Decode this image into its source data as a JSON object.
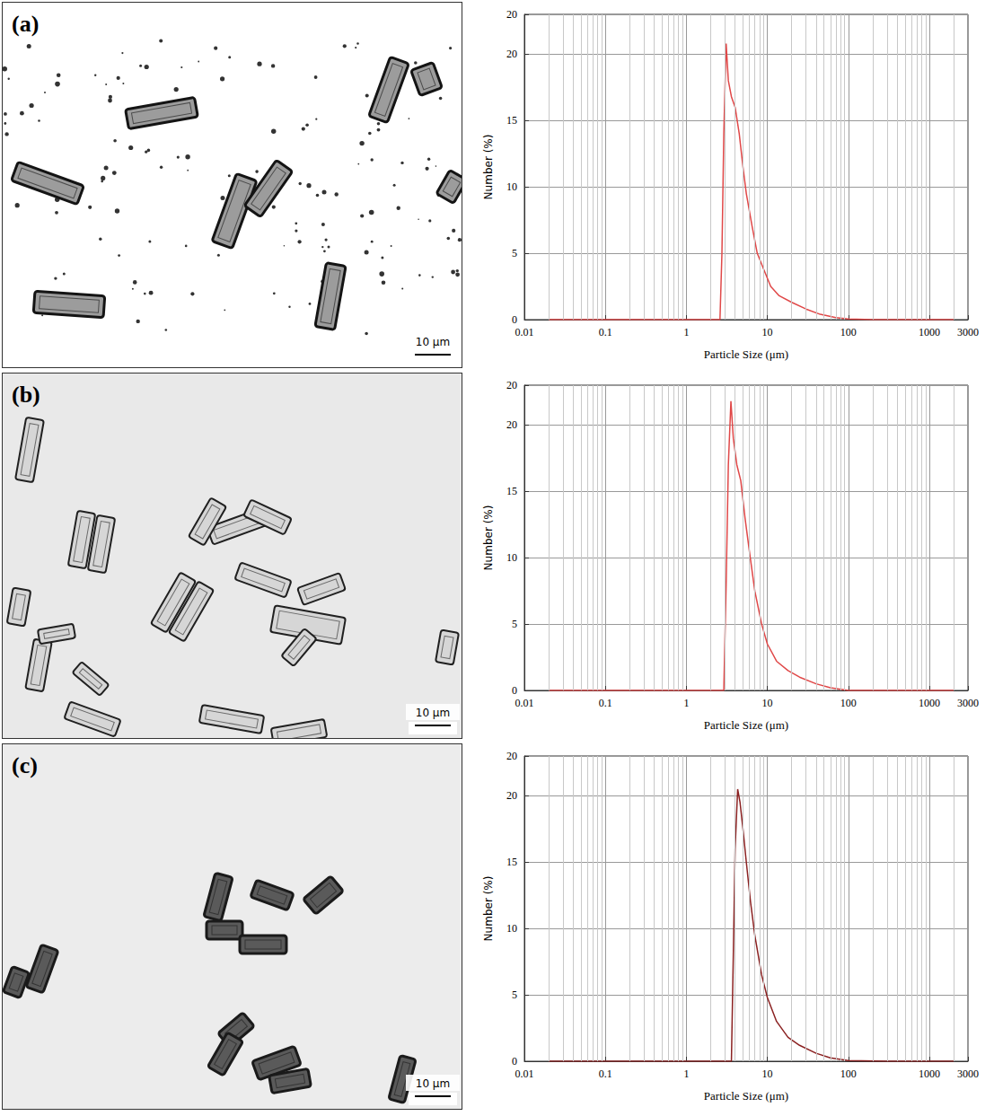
{
  "micrographs": [
    {
      "label": "(a)",
      "scale_bar": "10 μm"
    },
    {
      "label": "(b)",
      "scale_bar": "10 μm"
    },
    {
      "label": "(c)",
      "scale_bar": "10 μm"
    }
  ],
  "chart_data": [
    {
      "type": "line",
      "x_label": "Particle Size (μm)",
      "y_label": "Number (%)",
      "log": "x",
      "grid": true,
      "color": "#e04848",
      "xlim": [
        0.01,
        3000
      ],
      "xticks": [
        0.01,
        0.1,
        1,
        10,
        100,
        1000,
        3000
      ],
      "ylim": [
        0,
        23
      ],
      "yticks": [
        0,
        5,
        10,
        15,
        20
      ],
      "x": [
        0.02,
        2.6,
        2.75,
        2.9,
        3.1,
        3.3,
        3.6,
        4.0,
        4.5,
        5.0,
        5.5,
        6.5,
        7.5,
        9,
        11,
        14,
        20,
        30,
        45,
        70,
        100,
        200,
        300,
        2000
      ],
      "values": [
        0,
        0,
        5,
        14,
        20.8,
        18,
        16.8,
        16,
        14,
        11.5,
        9.5,
        7,
        5,
        3.8,
        2.5,
        1.8,
        1.3,
        0.8,
        0.4,
        0.15,
        0.05,
        0,
        0,
        0
      ]
    },
    {
      "type": "line",
      "x_label": "Particle Size (μm)",
      "y_label": "Number (%)",
      "log": "x",
      "grid": true,
      "color": "#e04848",
      "xlim": [
        0.01,
        3000
      ],
      "xticks": [
        0.01,
        0.1,
        1,
        10,
        100,
        1000,
        3000
      ],
      "ylim": [
        0,
        23
      ],
      "yticks": [
        0,
        5,
        10,
        15,
        20
      ],
      "x": [
        0.02,
        2.9,
        3.1,
        3.3,
        3.55,
        3.8,
        4.2,
        4.7,
        5.3,
        6,
        7,
        8.5,
        10,
        13,
        18,
        25,
        40,
        60,
        100,
        300,
        2000
      ],
      "values": [
        0,
        0,
        8,
        17,
        21.8,
        19,
        17,
        15.8,
        13,
        10.5,
        7.5,
        5,
        3.5,
        2.2,
        1.5,
        1,
        0.5,
        0.2,
        0,
        0,
        0
      ]
    },
    {
      "type": "line",
      "x_label": "Particle Size (μm)",
      "y_label": "Number (%)",
      "log": "x",
      "grid": true,
      "color": "#8b2222",
      "xlim": [
        0.01,
        3000
      ],
      "xticks": [
        0.01,
        0.1,
        1,
        10,
        100,
        1000,
        3000
      ],
      "ylim": [
        0,
        23
      ],
      "yticks": [
        0,
        5,
        10,
        15,
        20
      ],
      "x": [
        0.02,
        3.6,
        3.8,
        4.0,
        4.3,
        4.6,
        5.0,
        5.5,
        6.2,
        7,
        8.5,
        10,
        13,
        18,
        25,
        40,
        60,
        100,
        300,
        2000
      ],
      "values": [
        0,
        0,
        8,
        16,
        20.5,
        19.5,
        17.5,
        15,
        12,
        9.5,
        6.5,
        4.8,
        3,
        1.8,
        1.2,
        0.6,
        0.25,
        0.05,
        0,
        0
      ]
    }
  ]
}
